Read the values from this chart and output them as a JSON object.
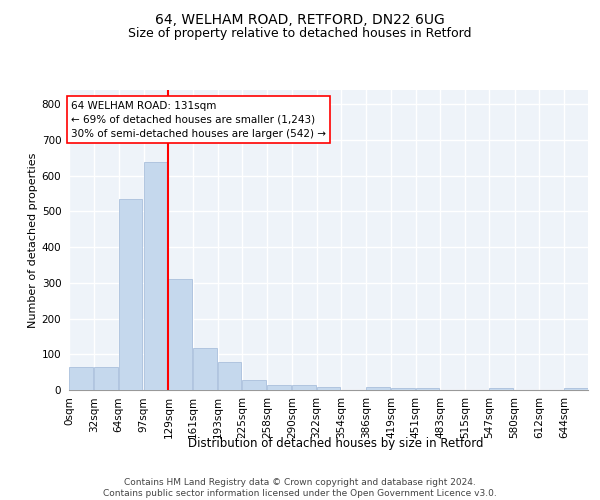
{
  "title1": "64, WELHAM ROAD, RETFORD, DN22 6UG",
  "title2": "Size of property relative to detached houses in Retford",
  "xlabel": "Distribution of detached houses by size in Retford",
  "ylabel": "Number of detached properties",
  "bar_labels": [
    "0sqm",
    "32sqm",
    "64sqm",
    "97sqm",
    "129sqm",
    "161sqm",
    "193sqm",
    "225sqm",
    "258sqm",
    "290sqm",
    "322sqm",
    "354sqm",
    "386sqm",
    "419sqm",
    "451sqm",
    "483sqm",
    "515sqm",
    "547sqm",
    "580sqm",
    "612sqm",
    "644sqm"
  ],
  "bar_values": [
    65,
    65,
    535,
    638,
    312,
    118,
    78,
    28,
    15,
    13,
    9,
    0,
    9,
    5,
    5,
    0,
    0,
    5,
    0,
    0,
    5
  ],
  "bar_color": "#c5d8ed",
  "bar_edge_color": "#a0b8d8",
  "vline_x": 129,
  "bin_width": 32,
  "annotation_text": "64 WELHAM ROAD: 131sqm\n← 69% of detached houses are smaller (1,243)\n30% of semi-detached houses are larger (542) →",
  "annotation_box_color": "white",
  "annotation_box_edge_color": "red",
  "vline_color": "red",
  "ylim": [
    0,
    840
  ],
  "yticks": [
    0,
    100,
    200,
    300,
    400,
    500,
    600,
    700,
    800
  ],
  "footer_text": "Contains HM Land Registry data © Crown copyright and database right 2024.\nContains public sector information licensed under the Open Government Licence v3.0.",
  "background_color": "#eef3f9",
  "grid_color": "white",
  "title1_fontsize": 10,
  "title2_fontsize": 9,
  "xlabel_fontsize": 8.5,
  "ylabel_fontsize": 8,
  "tick_fontsize": 7.5,
  "annotation_fontsize": 7.5,
  "footer_fontsize": 6.5
}
